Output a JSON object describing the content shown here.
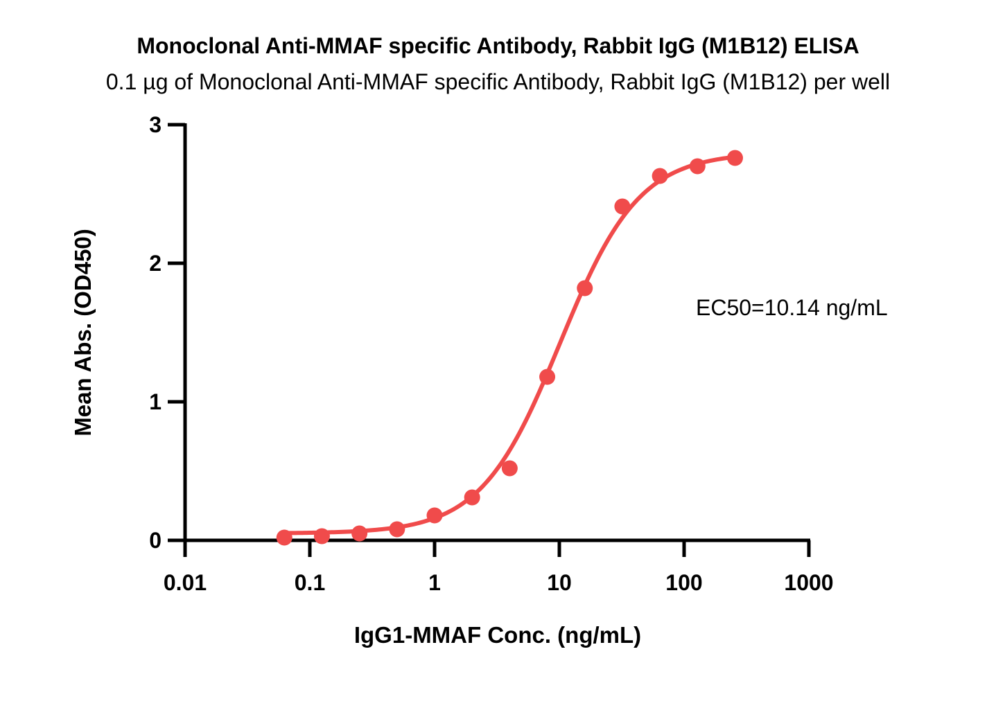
{
  "chart_data": {
    "type": "scatter",
    "title": "Monoclonal Anti-MMAF specific Antibody, Rabbit IgG (M1B12) ELISA",
    "subtitle": "0.1 µg of Monoclonal Anti-MMAF specific Antibody, Rabbit IgG (M1B12) per well",
    "xlabel": "IgG1-MMAF Conc. (ng/mL)",
    "ylabel": "Mean Abs. (OD450)",
    "x_scale": "log",
    "xlim": [
      0.01,
      1000
    ],
    "ylim": [
      0,
      3
    ],
    "x_ticks": [
      "0.01",
      "0.1",
      "1",
      "10",
      "100",
      "1000"
    ],
    "y_ticks": [
      "0",
      "1",
      "2",
      "3"
    ],
    "grid": false,
    "series": [
      {
        "color": "#f04b4b",
        "marker": "circle",
        "x": [
          0.0625,
          0.125,
          0.25,
          0.5,
          1,
          2,
          4,
          8,
          16,
          32,
          64,
          128,
          256
        ],
        "y": [
          0.02,
          0.03,
          0.05,
          0.08,
          0.18,
          0.31,
          0.52,
          1.18,
          1.82,
          2.41,
          2.63,
          2.7,
          2.76
        ]
      }
    ],
    "fit_curve": {
      "type": "4PL",
      "color": "#f04b4b",
      "bottom": 0.05,
      "top": 2.8,
      "ec50": 10.14,
      "hill_slope": 1.37,
      "x_range": [
        0.0625,
        256
      ]
    },
    "annotations": [
      {
        "text": "EC50=10.14 ng/mL"
      }
    ]
  }
}
